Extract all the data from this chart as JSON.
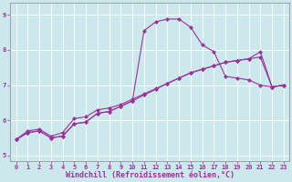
{
  "bg_color": "#cce8ec",
  "line_color": "#993399",
  "grid_color": "#ffffff",
  "xlabel": "Windchill (Refroidissement éolien,°C)",
  "xlim": [
    -0.5,
    23.5
  ],
  "ylim": [
    4.85,
    9.35
  ],
  "yticks": [
    5,
    6,
    7,
    8,
    9
  ],
  "xticks": [
    0,
    1,
    2,
    3,
    4,
    5,
    6,
    7,
    8,
    9,
    10,
    11,
    12,
    13,
    14,
    15,
    16,
    17,
    18,
    19,
    20,
    21,
    22,
    23
  ],
  "line1_x": [
    0,
    1,
    2,
    3,
    4,
    5,
    6,
    7,
    8,
    9,
    10,
    11,
    12,
    13,
    14,
    15,
    16,
    17,
    18,
    19,
    20,
    21,
    22,
    23
  ],
  "line1_y": [
    5.45,
    5.7,
    5.75,
    5.55,
    5.65,
    6.05,
    6.1,
    6.3,
    6.35,
    6.45,
    6.6,
    6.75,
    6.9,
    7.05,
    7.2,
    7.35,
    7.45,
    7.55,
    7.65,
    7.7,
    7.75,
    7.8,
    6.95,
    7.0
  ],
  "line2_x": [
    0,
    1,
    2,
    3,
    4,
    5,
    6,
    7,
    8,
    9,
    10,
    11,
    12,
    13,
    14,
    15,
    16,
    17,
    18,
    19,
    20,
    21,
    22,
    23
  ],
  "line2_y": [
    5.45,
    5.65,
    5.7,
    5.5,
    5.55,
    5.9,
    5.95,
    6.2,
    6.25,
    6.4,
    6.55,
    8.55,
    8.8,
    8.88,
    8.88,
    8.65,
    8.15,
    7.95,
    7.25,
    7.2,
    7.15,
    7.0,
    6.95,
    7.0
  ],
  "line3_x": [
    0,
    1,
    2,
    3,
    4,
    5,
    6,
    7,
    8,
    9,
    10,
    11,
    12,
    13,
    14,
    15,
    16,
    17,
    18,
    19,
    20,
    21,
    22,
    23
  ],
  "line3_y": [
    5.45,
    5.65,
    5.7,
    5.5,
    5.55,
    5.9,
    5.95,
    6.2,
    6.25,
    6.4,
    6.55,
    6.72,
    6.88,
    7.05,
    7.2,
    7.35,
    7.45,
    7.55,
    7.65,
    7.7,
    7.75,
    7.95,
    6.95,
    7.0
  ],
  "marker": "D",
  "marker_size": 2.5,
  "linewidth": 0.8,
  "tick_fontsize": 5,
  "xlabel_fontsize": 6
}
